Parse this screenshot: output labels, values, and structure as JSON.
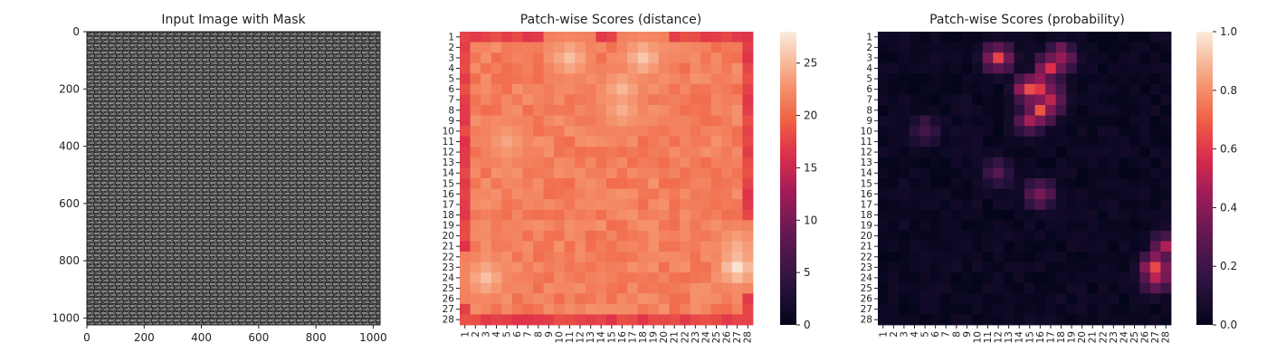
{
  "chart_data": [
    {
      "type": "image",
      "title": "Input Image with Mask",
      "xlim": [
        0,
        1024
      ],
      "ylim": [
        1024,
        0
      ],
      "xticks": [
        0,
        200,
        400,
        600,
        800,
        1000
      ],
      "yticks": [
        0,
        200,
        400,
        600,
        800,
        1000
      ],
      "description": "grayscale woven fabric texture",
      "colors": {
        "dark": "#2b2b2b",
        "light": "#a8a8a8"
      }
    },
    {
      "type": "heatmap",
      "title": "Patch-wise Scores (distance)",
      "rows": [
        "1",
        "2",
        "3",
        "4",
        "5",
        "6",
        "7",
        "8",
        "9",
        "10",
        "11",
        "12",
        "13",
        "14",
        "15",
        "16",
        "17",
        "18",
        "19",
        "20",
        "21",
        "22",
        "23",
        "24",
        "25",
        "26",
        "27",
        "28"
      ],
      "cols": [
        "1",
        "2",
        "3",
        "4",
        "5",
        "6",
        "7",
        "8",
        "9",
        "10",
        "11",
        "12",
        "13",
        "14",
        "15",
        "16",
        "17",
        "18",
        "19",
        "20",
        "21",
        "22",
        "23",
        "24",
        "25",
        "26",
        "27",
        "28"
      ],
      "colorbar": {
        "min": 0,
        "max": 28,
        "ticks": [
          0,
          5,
          10,
          15,
          20,
          25
        ]
      },
      "colormap": "rocket",
      "base_value": 21.5,
      "edge_value": 17.5,
      "hotspots": [
        {
          "row": 3,
          "col": 11,
          "value": 25.5
        },
        {
          "row": 3,
          "col": 18,
          "value": 26
        },
        {
          "row": 6,
          "col": 16,
          "value": 25
        },
        {
          "row": 8,
          "col": 16,
          "value": 24.5
        },
        {
          "row": 11,
          "col": 5,
          "value": 24
        },
        {
          "row": 24,
          "col": 3,
          "value": 25.5
        },
        {
          "row": 23,
          "col": 27,
          "value": 27.5
        },
        {
          "row": 21,
          "col": 27,
          "value": 24.5
        }
      ]
    },
    {
      "type": "heatmap",
      "title": "Patch-wise Scores (probability)",
      "rows": [
        "1",
        "2",
        "3",
        "4",
        "5",
        "6",
        "7",
        "8",
        "9",
        "10",
        "11",
        "12",
        "13",
        "14",
        "15",
        "16",
        "17",
        "18",
        "19",
        "20",
        "21",
        "22",
        "23",
        "24",
        "25",
        "26",
        "27",
        "28"
      ],
      "cols": [
        "1",
        "2",
        "3",
        "4",
        "5",
        "6",
        "7",
        "8",
        "9",
        "10",
        "11",
        "12",
        "13",
        "14",
        "15",
        "16",
        "17",
        "18",
        "19",
        "20",
        "21",
        "22",
        "23",
        "24",
        "25",
        "26",
        "27",
        "28"
      ],
      "colorbar": {
        "min": 0,
        "max": 1,
        "ticks": [
          "0.0",
          "0.2",
          "0.4",
          "0.6",
          "0.8",
          "1.0"
        ]
      },
      "colormap": "rocket",
      "base_value": 0.04,
      "hotspots": [
        {
          "row": 3,
          "col": 12,
          "value": 0.65
        },
        {
          "row": 3,
          "col": 18,
          "value": 0.55
        },
        {
          "row": 4,
          "col": 17,
          "value": 0.62
        },
        {
          "row": 6,
          "col": 15,
          "value": 0.68
        },
        {
          "row": 6,
          "col": 16,
          "value": 0.72
        },
        {
          "row": 7,
          "col": 17,
          "value": 0.6
        },
        {
          "row": 8,
          "col": 16,
          "value": 0.7
        },
        {
          "row": 9,
          "col": 15,
          "value": 0.5
        },
        {
          "row": 10,
          "col": 5,
          "value": 0.3
        },
        {
          "row": 16,
          "col": 16,
          "value": 0.45
        },
        {
          "row": 14,
          "col": 12,
          "value": 0.3
        },
        {
          "row": 21,
          "col": 28,
          "value": 0.5
        },
        {
          "row": 23,
          "col": 27,
          "value": 0.7
        },
        {
          "row": 24,
          "col": 27,
          "value": 0.6
        }
      ]
    }
  ]
}
